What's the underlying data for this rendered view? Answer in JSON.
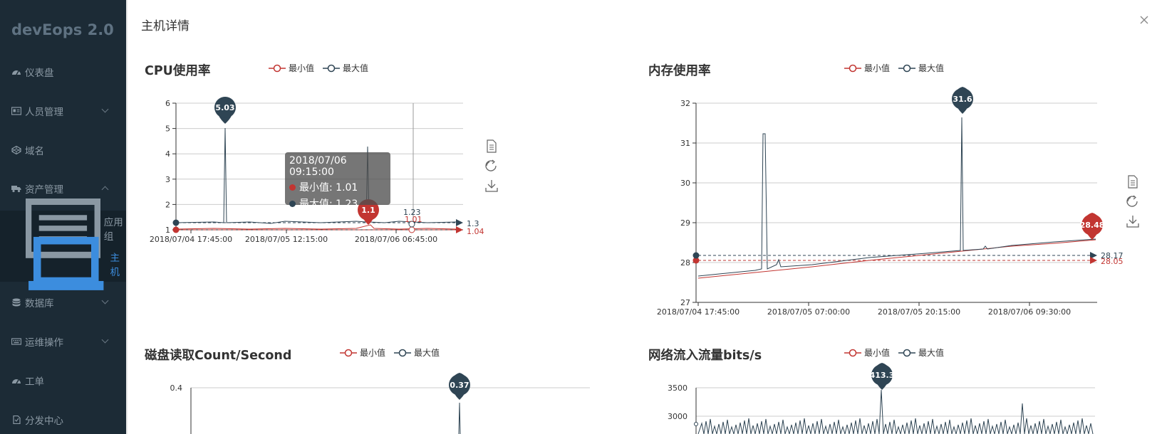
{
  "app": {
    "title": "devEops 2.0"
  },
  "sidebar": {
    "items": [
      {
        "label": "仪表盘",
        "icon": "dashboard-icon"
      },
      {
        "label": "人员管理",
        "icon": "id-card-icon"
      },
      {
        "label": "域名",
        "icon": "codepen-icon"
      },
      {
        "label": "资产管理",
        "icon": "truck-icon"
      },
      {
        "label": "数据库",
        "icon": "database-icon"
      },
      {
        "label": "运维操作",
        "icon": "keyboard-icon"
      },
      {
        "label": "工单",
        "icon": "dashboard-icon"
      },
      {
        "label": "分发中心",
        "icon": "file-icon"
      }
    ],
    "submenu": [
      {
        "label": "应用组",
        "icon": "list-icon"
      },
      {
        "label": "主机",
        "icon": "laptop-icon",
        "active": true
      }
    ]
  },
  "drawer": {
    "title": "主机详情"
  },
  "legend": {
    "min": "最小值",
    "max": "最大值"
  },
  "colors": {
    "min": "#c23531",
    "max": "#2f4554"
  },
  "tooltip": {
    "time": "2018/07/06 09:15:00",
    "min_label": "最小值: 1.01",
    "max_label": "最大值: 1.23"
  },
  "chart_data": [
    {
      "type": "line",
      "title": "CPU使用率",
      "ylim": [
        1,
        6
      ],
      "yticks": [
        "1",
        "2",
        "3",
        "4",
        "5",
        "6"
      ],
      "xticks": [
        "2018/07/04 17:45:00",
        "2018/07/05 12:15:00",
        "2018/07/06 06:45:00"
      ],
      "series": [
        {
          "name": "最小值",
          "max_pin": "1.1",
          "avg": "1.04"
        },
        {
          "name": "最大值",
          "max_pin": "5.03",
          "avg": "1.3"
        }
      ],
      "hover": {
        "min": "1.01",
        "max": "1.23"
      }
    },
    {
      "type": "line",
      "title": "内存使用率",
      "ylim": [
        27,
        32
      ],
      "yticks": [
        "27",
        "28",
        "29",
        "30",
        "31",
        "32"
      ],
      "xticks": [
        "2018/07/04 17:45:00",
        "2018/07/05 07:00:00",
        "2018/07/05 20:15:00",
        "2018/07/06 09:30:00"
      ],
      "series": [
        {
          "name": "最小值",
          "max_pin": "28.48",
          "avg": "28.05"
        },
        {
          "name": "最大值",
          "max_pin": "31.6",
          "avg": "28.17"
        }
      ]
    },
    {
      "type": "line",
      "title": "磁盘读取Count/Second",
      "yticks": [
        "0.4"
      ],
      "series": [
        {
          "name": "最小值"
        },
        {
          "name": "最大值",
          "max_pin": "0.37"
        }
      ]
    },
    {
      "type": "line",
      "title": "网络流入流量bits/s",
      "yticks": [
        "3000",
        "3500"
      ],
      "series": [
        {
          "name": "最小值"
        },
        {
          "name": "最大值",
          "max_pin": "413.3"
        }
      ]
    }
  ]
}
